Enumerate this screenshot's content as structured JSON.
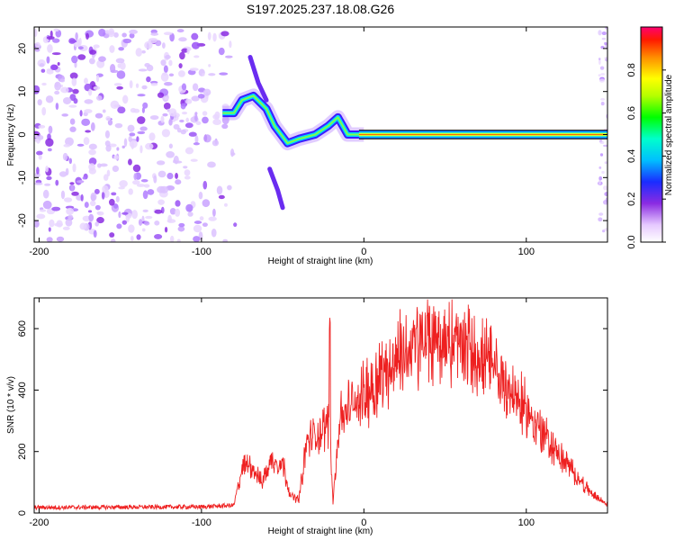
{
  "title": "S197.2025.237.18.08.G26",
  "chart_data": [
    {
      "type": "heatmap",
      "xlabel": "Height of straight line (km)",
      "ylabel": "Frequency (Hz)",
      "xlim": [
        -203,
        150
      ],
      "ylim": [
        -25,
        25
      ],
      "xticks": [
        -200,
        -100,
        0,
        100
      ],
      "yticks": [
        -20,
        -10,
        0,
        10,
        20
      ],
      "colorbar": {
        "label": "Normalized spectral amplitude",
        "ticks": [
          "0.0",
          "0.2",
          "0.4",
          "0.6",
          "0.8"
        ],
        "range": [
          0,
          1
        ]
      },
      "ridge": [
        {
          "x": -87,
          "f": 5
        },
        {
          "x": -80,
          "f": 5
        },
        {
          "x": -75,
          "f": 8
        },
        {
          "x": -68,
          "f": 9
        },
        {
          "x": -60,
          "f": 6
        },
        {
          "x": -55,
          "f": 2
        },
        {
          "x": -47,
          "f": -2
        },
        {
          "x": -40,
          "f": -1
        },
        {
          "x": -30,
          "f": 0
        },
        {
          "x": -22,
          "f": 2
        },
        {
          "x": -16,
          "f": 4
        },
        {
          "x": -10,
          "f": 0
        },
        {
          "x": 0,
          "f": 0
        },
        {
          "x": 150,
          "f": 0
        }
      ]
    },
    {
      "type": "line",
      "xlabel": "Height of straight line (km)",
      "ylabel": "SNR (10 * v/v)",
      "xlim": [
        -203,
        150
      ],
      "ylim": [
        0,
        700
      ],
      "xticks": [
        -200,
        -100,
        0,
        100
      ],
      "yticks": [
        0,
        200,
        400,
        600
      ],
      "color": "#ee2020",
      "envelope": [
        {
          "x": -203,
          "y": 18
        },
        {
          "x": -100,
          "y": 20
        },
        {
          "x": -80,
          "y": 25
        },
        {
          "x": -75,
          "y": 160
        },
        {
          "x": -70,
          "y": 180
        },
        {
          "x": -63,
          "y": 110
        },
        {
          "x": -57,
          "y": 190
        },
        {
          "x": -50,
          "y": 180
        },
        {
          "x": -45,
          "y": 60
        },
        {
          "x": -40,
          "y": 50
        },
        {
          "x": -35,
          "y": 260
        },
        {
          "x": -25,
          "y": 300
        },
        {
          "x": -21,
          "y": 330
        },
        {
          "x": -19,
          "y": 40
        },
        {
          "x": -15,
          "y": 340
        },
        {
          "x": 0,
          "y": 430
        },
        {
          "x": 20,
          "y": 560
        },
        {
          "x": 40,
          "y": 630
        },
        {
          "x": 60,
          "y": 610
        },
        {
          "x": 80,
          "y": 520
        },
        {
          "x": 100,
          "y": 370
        },
        {
          "x": 120,
          "y": 210
        },
        {
          "x": 140,
          "y": 70
        },
        {
          "x": 150,
          "y": 30
        }
      ]
    }
  ]
}
